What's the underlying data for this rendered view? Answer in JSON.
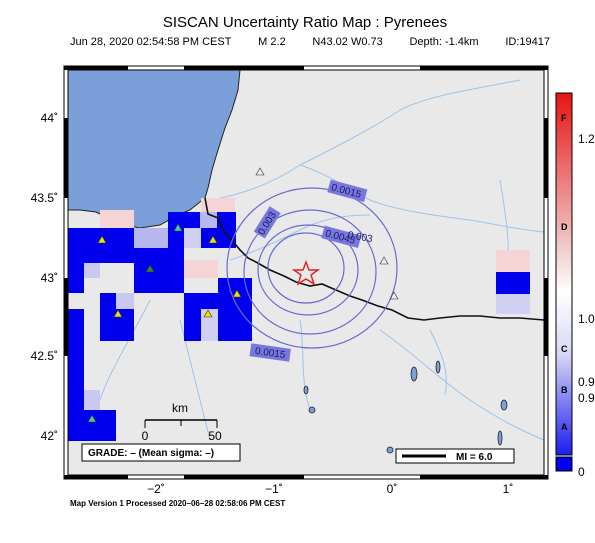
{
  "title": "SISCAN Uncertainty Ratio Map : Pyrenees",
  "subtitle": {
    "datetime": "Jun 28, 2020 02:54:58 PM CEST",
    "magnitude": "M 2.2",
    "location": "N43.02 W0.73",
    "depth": "Depth: -1.4km",
    "id": "ID:19417"
  },
  "axes": {
    "lat_labels": [
      "44˚",
      "43.5˚",
      "43˚",
      "42.5˚",
      "42˚"
    ],
    "lon_labels": [
      "−2˚",
      "−1˚",
      "0˚",
      "1˚"
    ]
  },
  "contours": {
    "outer_label": "0.0015",
    "outer_label_bottom": "0.0015",
    "inner_label": "0.003",
    "inner_label_overlap": "0.003",
    "center_label": "0.0045"
  },
  "scale_bar": {
    "unit": "km",
    "zero": "0",
    "end": "50"
  },
  "grade_box": "GRADE: – (Mean sigma: –)",
  "mi_box": "MI = 6.0",
  "colorbar": {
    "grades": [
      "F",
      "D",
      "C",
      "B",
      "A"
    ],
    "values": [
      "1.2",
      "1.0",
      "0.9",
      "0.9",
      "0"
    ]
  },
  "footer": "Map Version 1 Processed 2020–06–28 02:58:06 PM CEST",
  "colors": {
    "sea": "#7b9fd9",
    "land": "#e9e9e9",
    "grid_blue": "#0000ee",
    "epicenter": "#e02020",
    "contour": "#6a6ad0"
  }
}
